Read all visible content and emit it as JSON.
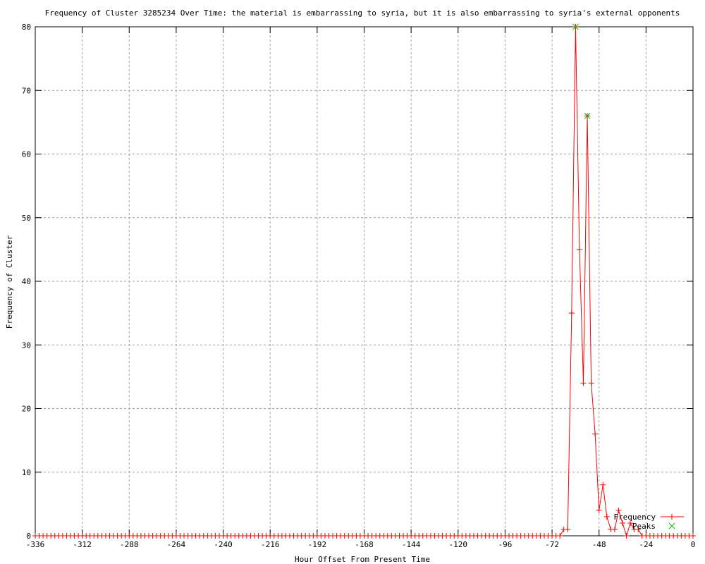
{
  "chart_data": {
    "type": "line",
    "title": "Frequency of Cluster 3285234 Over Time: the material is embarrassing to syria, but it is also embarrassing to syria's external opponents",
    "xlabel": "Hour Offset From Present Time",
    "ylabel": "Frequency of Cluster",
    "xlim": [
      -336,
      0
    ],
    "ylim": [
      0,
      80
    ],
    "xticks": [
      -336,
      -312,
      -288,
      -264,
      -240,
      -216,
      -192,
      -168,
      -144,
      -120,
      -96,
      -72,
      -48,
      -24,
      0
    ],
    "yticks": [
      0,
      10,
      20,
      30,
      40,
      50,
      60,
      70,
      80
    ],
    "grid": true,
    "legend_position": "bottom-right",
    "x_step": 2,
    "series": [
      {
        "name": "Frequency",
        "color": "#ff0000",
        "marker": "plus",
        "nonzero_points": [
          [
            -66,
            1
          ],
          [
            -64,
            1
          ],
          [
            -62,
            35
          ],
          [
            -60,
            80
          ],
          [
            -58,
            45
          ],
          [
            -56,
            24
          ],
          [
            -54,
            66
          ],
          [
            -52,
            24
          ],
          [
            -50,
            16
          ],
          [
            -48,
            4
          ],
          [
            -46,
            8
          ],
          [
            -44,
            3
          ],
          [
            -42,
            1
          ],
          [
            -40,
            1
          ],
          [
            -38,
            4
          ],
          [
            -36,
            2
          ],
          [
            -34,
            0
          ],
          [
            -32,
            2
          ],
          [
            -30,
            1
          ],
          [
            -28,
            1
          ]
        ],
        "default_value": 0
      },
      {
        "name": "Peaks",
        "color": "#00c000",
        "marker": "x",
        "points": [
          [
            -60,
            80
          ],
          [
            -54,
            66
          ]
        ]
      }
    ]
  }
}
